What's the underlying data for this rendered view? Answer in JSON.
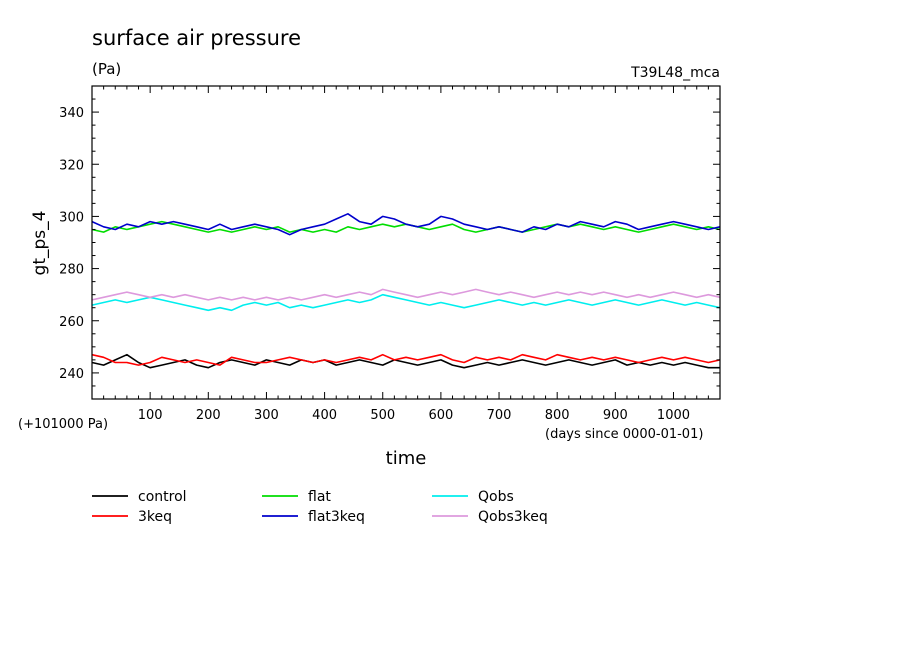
{
  "chart_data": {
    "type": "line",
    "title": "surface air pressure",
    "unit": "(Pa)",
    "experiment": "T39L48_mca",
    "ylabel": "gt_ps_4",
    "xlabel": "time",
    "y_offset_label": "(+101000 Pa)",
    "x_units_label": "(days since 0000-01-01)",
    "xlim": [
      0,
      1080
    ],
    "ylim": [
      230,
      350
    ],
    "xticks": [
      100,
      200,
      300,
      400,
      500,
      600,
      700,
      800,
      900,
      1000
    ],
    "yticks": [
      240,
      260,
      280,
      300,
      320,
      340
    ],
    "x": [
      0,
      20,
      40,
      60,
      80,
      100,
      120,
      140,
      160,
      180,
      200,
      220,
      240,
      260,
      280,
      300,
      320,
      340,
      360,
      380,
      400,
      420,
      440,
      460,
      480,
      500,
      520,
      540,
      560,
      580,
      600,
      620,
      640,
      660,
      680,
      700,
      720,
      740,
      760,
      780,
      800,
      820,
      840,
      860,
      880,
      900,
      920,
      940,
      960,
      980,
      1000,
      1020,
      1040,
      1060,
      1080
    ],
    "series": [
      {
        "name": "control",
        "color": "#000000",
        "values": [
          244,
          243,
          245,
          247,
          244,
          242,
          243,
          244,
          245,
          243,
          242,
          244,
          245,
          244,
          243,
          245,
          244,
          243,
          245,
          244,
          245,
          243,
          244,
          245,
          244,
          243,
          245,
          244,
          243,
          244,
          245,
          243,
          242,
          243,
          244,
          243,
          244,
          245,
          244,
          243,
          244,
          245,
          244,
          243,
          244,
          245,
          243,
          244,
          243,
          244,
          243,
          244,
          243,
          242,
          242
        ]
      },
      {
        "name": "3keq",
        "color": "#ff0000",
        "values": [
          247,
          246,
          244,
          244,
          243,
          244,
          246,
          245,
          244,
          245,
          244,
          243,
          246,
          245,
          244,
          244,
          245,
          246,
          245,
          244,
          245,
          244,
          245,
          246,
          245,
          247,
          245,
          246,
          245,
          246,
          247,
          245,
          244,
          246,
          245,
          246,
          245,
          247,
          246,
          245,
          247,
          246,
          245,
          246,
          245,
          246,
          245,
          244,
          245,
          246,
          245,
          246,
          245,
          244,
          245
        ]
      },
      {
        "name": "flat",
        "color": "#00dd00",
        "values": [
          295,
          294,
          296,
          295,
          296,
          297,
          298,
          297,
          296,
          295,
          294,
          295,
          294,
          295,
          296,
          295,
          296,
          294,
          295,
          294,
          295,
          294,
          296,
          295,
          296,
          297,
          296,
          297,
          296,
          295,
          296,
          297,
          295,
          294,
          295,
          296,
          295,
          294,
          295,
          296,
          297,
          296,
          297,
          296,
          295,
          296,
          295,
          294,
          295,
          296,
          297,
          296,
          295,
          296,
          295
        ]
      },
      {
        "name": "flat3keq",
        "color": "#0000cc",
        "values": [
          298,
          296,
          295,
          297,
          296,
          298,
          297,
          298,
          297,
          296,
          295,
          297,
          295,
          296,
          297,
          296,
          295,
          293,
          295,
          296,
          297,
          299,
          301,
          298,
          297,
          300,
          299,
          297,
          296,
          297,
          300,
          299,
          297,
          296,
          295,
          296,
          295,
          294,
          296,
          295,
          297,
          296,
          298,
          297,
          296,
          298,
          297,
          295,
          296,
          297,
          298,
          297,
          296,
          295,
          296
        ]
      },
      {
        "name": "Qobs",
        "color": "#00eeee",
        "values": [
          266,
          267,
          268,
          267,
          268,
          269,
          268,
          267,
          266,
          265,
          264,
          265,
          264,
          266,
          267,
          266,
          267,
          265,
          266,
          265,
          266,
          267,
          268,
          267,
          268,
          270,
          269,
          268,
          267,
          266,
          267,
          266,
          265,
          266,
          267,
          268,
          267,
          266,
          267,
          266,
          267,
          268,
          267,
          266,
          267,
          268,
          267,
          266,
          267,
          268,
          267,
          266,
          267,
          266,
          265
        ]
      },
      {
        "name": "Qobs3keq",
        "color": "#dd99dd",
        "values": [
          268,
          269,
          270,
          271,
          270,
          269,
          270,
          269,
          270,
          269,
          268,
          269,
          268,
          269,
          268,
          269,
          268,
          269,
          268,
          269,
          270,
          269,
          270,
          271,
          270,
          272,
          271,
          270,
          269,
          270,
          271,
          270,
          271,
          272,
          271,
          270,
          271,
          270,
          269,
          270,
          271,
          270,
          271,
          270,
          271,
          270,
          269,
          270,
          269,
          270,
          271,
          270,
          269,
          270,
          269
        ]
      }
    ],
    "legend_position": "bottom",
    "grid": false
  }
}
